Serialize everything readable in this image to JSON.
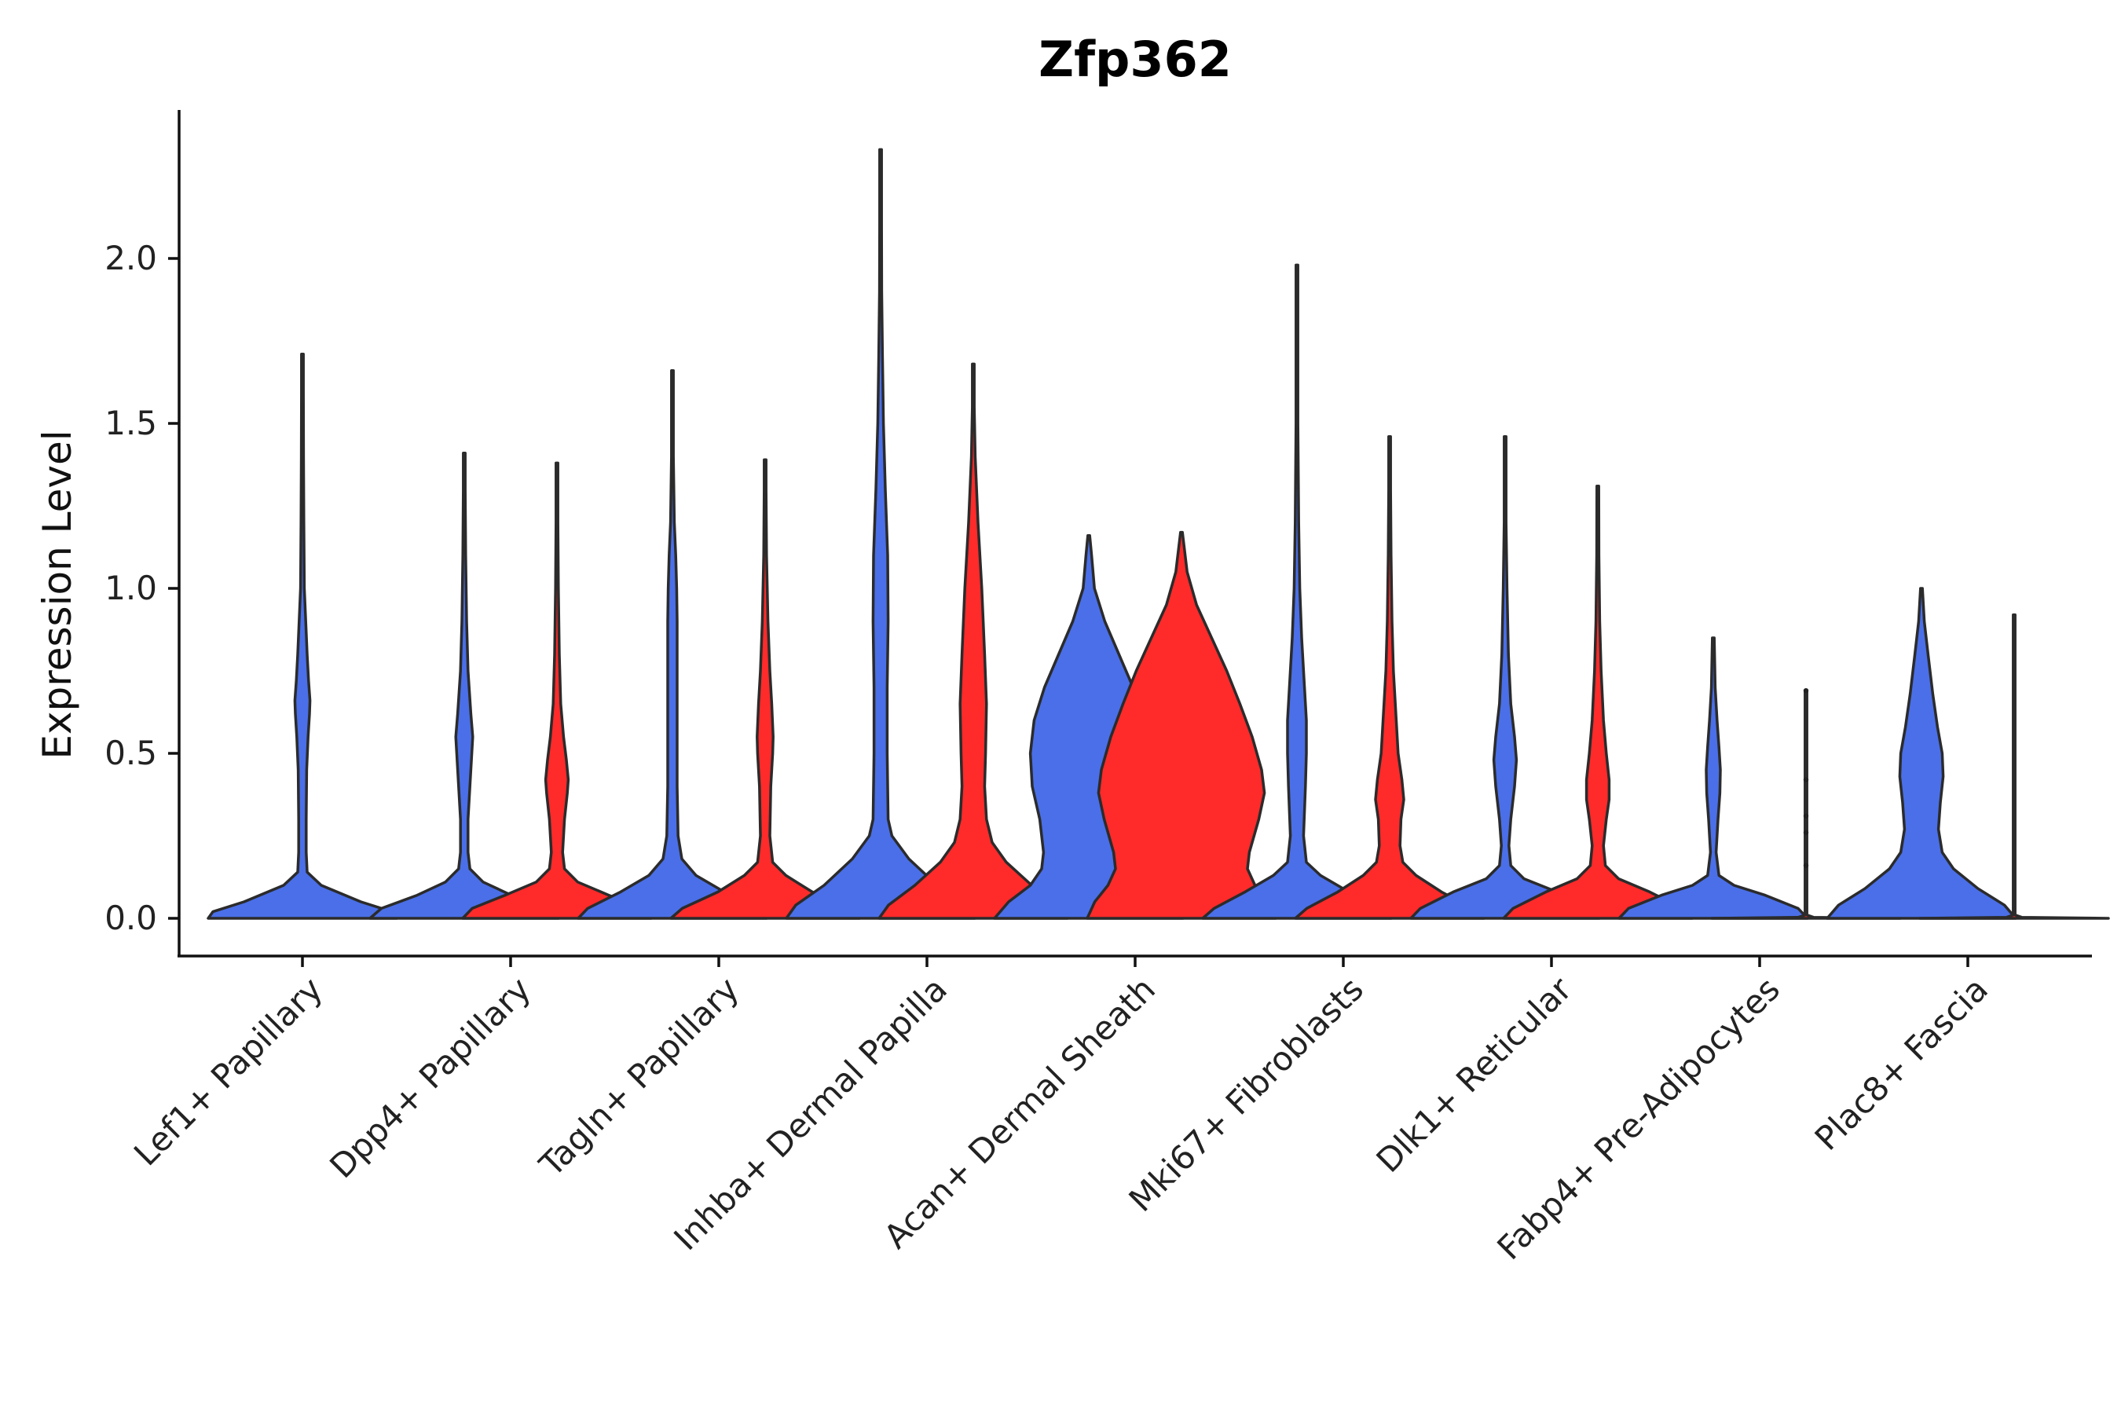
{
  "chart_data": {
    "type": "violin",
    "title": "Zfp362",
    "xlabel": "",
    "ylabel": "Expression Level",
    "ylim": [
      -0.12,
      2.45
    ],
    "yticks": [
      0.0,
      0.5,
      1.0,
      1.5,
      2.0
    ],
    "ytick_labels": [
      "0.0",
      "0.5",
      "1.0",
      "1.5",
      "2.0"
    ],
    "series_colors": {
      "blue": "#4A6FE8",
      "red": "#FF2A2A"
    },
    "categories": [
      "Lef1+ Papillary",
      "Dpp4+ Papillary",
      "Tagln+ Papillary",
      "Inhba+ Dermal Papilla",
      "Acan+ Dermal Sheath",
      "Mki67+ Fibroblasts",
      "Dlk1+ Reticular",
      "Fabp4+ Pre-Adipocytes",
      "Plac8+ Fascia"
    ],
    "violins": [
      {
        "category": "Lef1+ Papillary",
        "series": "blue",
        "max": 1.71,
        "profile": [
          [
            0,
            1.0
          ],
          [
            0.02,
            0.95
          ],
          [
            0.05,
            0.62
          ],
          [
            0.1,
            0.2
          ],
          [
            0.14,
            0.05
          ],
          [
            0.2,
            0.04
          ],
          [
            0.3,
            0.04
          ],
          [
            0.45,
            0.045
          ],
          [
            0.55,
            0.06
          ],
          [
            0.62,
            0.075
          ],
          [
            0.66,
            0.08
          ],
          [
            0.72,
            0.065
          ],
          [
            0.8,
            0.05
          ],
          [
            0.9,
            0.035
          ],
          [
            1.0,
            0.02
          ],
          [
            1.2,
            0.015
          ],
          [
            1.4,
            0.012
          ],
          [
            1.6,
            0.008
          ],
          [
            1.71,
            0
          ]
        ]
      },
      {
        "category": "Dpp4+ Papillary",
        "series": "blue",
        "max": 1.41,
        "profile": [
          [
            0,
            1.0
          ],
          [
            0.03,
            0.88
          ],
          [
            0.07,
            0.5
          ],
          [
            0.11,
            0.2
          ],
          [
            0.15,
            0.06
          ],
          [
            0.2,
            0.04
          ],
          [
            0.3,
            0.04
          ],
          [
            0.4,
            0.06
          ],
          [
            0.5,
            0.08
          ],
          [
            0.55,
            0.09
          ],
          [
            0.62,
            0.07
          ],
          [
            0.75,
            0.04
          ],
          [
            0.9,
            0.025
          ],
          [
            1.1,
            0.015
          ],
          [
            1.3,
            0.01
          ],
          [
            1.41,
            0
          ]
        ]
      },
      {
        "category": "Dpp4+ Papillary",
        "series": "red",
        "max": 1.38,
        "profile": [
          [
            0,
            1.0
          ],
          [
            0.03,
            0.9
          ],
          [
            0.07,
            0.55
          ],
          [
            0.11,
            0.22
          ],
          [
            0.15,
            0.08
          ],
          [
            0.2,
            0.06
          ],
          [
            0.3,
            0.08
          ],
          [
            0.38,
            0.11
          ],
          [
            0.42,
            0.12
          ],
          [
            0.48,
            0.1
          ],
          [
            0.55,
            0.07
          ],
          [
            0.65,
            0.04
          ],
          [
            0.8,
            0.025
          ],
          [
            1.0,
            0.015
          ],
          [
            1.2,
            0.01
          ],
          [
            1.38,
            0
          ]
        ]
      },
      {
        "category": "Tagln+ Papillary",
        "series": "blue",
        "max": 1.66,
        "profile": [
          [
            0,
            1.0
          ],
          [
            0.03,
            0.9
          ],
          [
            0.08,
            0.55
          ],
          [
            0.13,
            0.25
          ],
          [
            0.18,
            0.1
          ],
          [
            0.25,
            0.06
          ],
          [
            0.4,
            0.05
          ],
          [
            0.55,
            0.05
          ],
          [
            0.7,
            0.05
          ],
          [
            0.9,
            0.05
          ],
          [
            1.0,
            0.045
          ],
          [
            1.1,
            0.035
          ],
          [
            1.2,
            0.02
          ],
          [
            1.4,
            0.01
          ],
          [
            1.66,
            0
          ]
        ]
      },
      {
        "category": "Tagln+ Papillary",
        "series": "red",
        "max": 1.39,
        "profile": [
          [
            0,
            1.0
          ],
          [
            0.03,
            0.88
          ],
          [
            0.08,
            0.5
          ],
          [
            0.13,
            0.22
          ],
          [
            0.17,
            0.08
          ],
          [
            0.25,
            0.05
          ],
          [
            0.4,
            0.06
          ],
          [
            0.5,
            0.08
          ],
          [
            0.55,
            0.085
          ],
          [
            0.65,
            0.07
          ],
          [
            0.75,
            0.05
          ],
          [
            0.9,
            0.03
          ],
          [
            1.1,
            0.015
          ],
          [
            1.3,
            0.008
          ],
          [
            1.39,
            0
          ]
        ]
      },
      {
        "category": "Inhba+ Dermal Papilla",
        "series": "blue",
        "max": 2.33,
        "profile": [
          [
            0,
            1.0
          ],
          [
            0.04,
            0.9
          ],
          [
            0.1,
            0.6
          ],
          [
            0.18,
            0.3
          ],
          [
            0.25,
            0.12
          ],
          [
            0.3,
            0.08
          ],
          [
            0.5,
            0.07
          ],
          [
            0.7,
            0.07
          ],
          [
            0.9,
            0.08
          ],
          [
            1.1,
            0.075
          ],
          [
            1.3,
            0.05
          ],
          [
            1.5,
            0.03
          ],
          [
            1.7,
            0.02
          ],
          [
            1.9,
            0.012
          ],
          [
            2.1,
            0.008
          ],
          [
            2.33,
            0
          ]
        ]
      },
      {
        "category": "Inhba+ Dermal Papilla",
        "series": "red",
        "max": 1.68,
        "profile": [
          [
            0,
            1.0
          ],
          [
            0.04,
            0.9
          ],
          [
            0.1,
            0.62
          ],
          [
            0.17,
            0.35
          ],
          [
            0.23,
            0.2
          ],
          [
            0.3,
            0.14
          ],
          [
            0.4,
            0.12
          ],
          [
            0.5,
            0.13
          ],
          [
            0.65,
            0.14
          ],
          [
            0.8,
            0.12
          ],
          [
            1.0,
            0.09
          ],
          [
            1.2,
            0.05
          ],
          [
            1.4,
            0.02
          ],
          [
            1.55,
            0.01
          ],
          [
            1.68,
            0
          ]
        ]
      },
      {
        "category": "Acan+ Dermal Sheath",
        "series": "blue",
        "max": 1.16,
        "profile": [
          [
            0,
            1.0
          ],
          [
            0.05,
            0.85
          ],
          [
            0.1,
            0.62
          ],
          [
            0.15,
            0.5
          ],
          [
            0.2,
            0.48
          ],
          [
            0.3,
            0.52
          ],
          [
            0.4,
            0.6
          ],
          [
            0.5,
            0.62
          ],
          [
            0.6,
            0.58
          ],
          [
            0.7,
            0.47
          ],
          [
            0.8,
            0.32
          ],
          [
            0.9,
            0.17
          ],
          [
            1.0,
            0.06
          ],
          [
            1.1,
            0.03
          ],
          [
            1.16,
            0
          ]
        ]
      },
      {
        "category": "Acan+ Dermal Sheath",
        "series": "red",
        "max": 1.17,
        "profile": [
          [
            0,
            1.0
          ],
          [
            0.05,
            0.92
          ],
          [
            0.1,
            0.78
          ],
          [
            0.15,
            0.7
          ],
          [
            0.2,
            0.72
          ],
          [
            0.3,
            0.82
          ],
          [
            0.38,
            0.88
          ],
          [
            0.45,
            0.85
          ],
          [
            0.55,
            0.75
          ],
          [
            0.65,
            0.62
          ],
          [
            0.75,
            0.48
          ],
          [
            0.85,
            0.32
          ],
          [
            0.95,
            0.16
          ],
          [
            1.05,
            0.06
          ],
          [
            1.17,
            0
          ]
        ]
      },
      {
        "category": "Mki67+ Fibroblasts",
        "series": "blue",
        "max": 1.98,
        "profile": [
          [
            0,
            1.0
          ],
          [
            0.03,
            0.88
          ],
          [
            0.08,
            0.55
          ],
          [
            0.13,
            0.25
          ],
          [
            0.17,
            0.1
          ],
          [
            0.25,
            0.07
          ],
          [
            0.4,
            0.09
          ],
          [
            0.5,
            0.1
          ],
          [
            0.6,
            0.1
          ],
          [
            0.7,
            0.08
          ],
          [
            0.85,
            0.05
          ],
          [
            1.0,
            0.03
          ],
          [
            1.2,
            0.018
          ],
          [
            1.5,
            0.01
          ],
          [
            1.98,
            0
          ]
        ]
      },
      {
        "category": "Mki67+ Fibroblasts",
        "series": "red",
        "max": 1.46,
        "profile": [
          [
            0,
            1.0
          ],
          [
            0.03,
            0.88
          ],
          [
            0.08,
            0.55
          ],
          [
            0.13,
            0.28
          ],
          [
            0.17,
            0.14
          ],
          [
            0.22,
            0.11
          ],
          [
            0.3,
            0.12
          ],
          [
            0.36,
            0.15
          ],
          [
            0.42,
            0.13
          ],
          [
            0.5,
            0.09
          ],
          [
            0.6,
            0.07
          ],
          [
            0.75,
            0.04
          ],
          [
            0.9,
            0.025
          ],
          [
            1.1,
            0.015
          ],
          [
            1.3,
            0.008
          ],
          [
            1.46,
            0
          ]
        ]
      },
      {
        "category": "Dlk1+ Reticular",
        "series": "blue",
        "max": 1.46,
        "profile": [
          [
            0,
            1.0
          ],
          [
            0.03,
            0.9
          ],
          [
            0.08,
            0.55
          ],
          [
            0.12,
            0.2
          ],
          [
            0.16,
            0.06
          ],
          [
            0.22,
            0.04
          ],
          [
            0.3,
            0.06
          ],
          [
            0.4,
            0.1
          ],
          [
            0.48,
            0.12
          ],
          [
            0.55,
            0.1
          ],
          [
            0.65,
            0.06
          ],
          [
            0.8,
            0.035
          ],
          [
            1.0,
            0.02
          ],
          [
            1.2,
            0.01
          ],
          [
            1.46,
            0
          ]
        ]
      },
      {
        "category": "Dlk1+ Reticular",
        "series": "red",
        "max": 1.31,
        "profile": [
          [
            0,
            1.0
          ],
          [
            0.03,
            0.9
          ],
          [
            0.08,
            0.55
          ],
          [
            0.12,
            0.22
          ],
          [
            0.16,
            0.08
          ],
          [
            0.22,
            0.06
          ],
          [
            0.3,
            0.09
          ],
          [
            0.36,
            0.12
          ],
          [
            0.42,
            0.12
          ],
          [
            0.5,
            0.09
          ],
          [
            0.6,
            0.06
          ],
          [
            0.75,
            0.035
          ],
          [
            0.9,
            0.02
          ],
          [
            1.1,
            0.012
          ],
          [
            1.31,
            0
          ]
        ]
      },
      {
        "category": "Fabp4+ Pre-Adipocytes",
        "series": "blue",
        "max": 0.85,
        "profile": [
          [
            0,
            1.0
          ],
          [
            0.03,
            0.9
          ],
          [
            0.07,
            0.55
          ],
          [
            0.1,
            0.22
          ],
          [
            0.13,
            0.06
          ],
          [
            0.2,
            0.03
          ],
          [
            0.3,
            0.05
          ],
          [
            0.38,
            0.07
          ],
          [
            0.45,
            0.075
          ],
          [
            0.52,
            0.06
          ],
          [
            0.6,
            0.04
          ],
          [
            0.7,
            0.02
          ],
          [
            0.85,
            0
          ]
        ]
      },
      {
        "category": "Fabp4+ Pre-Adipocytes",
        "series": "red",
        "max": 0.69,
        "profile": [
          [
            0,
            1.0
          ],
          [
            0.003,
            0.08
          ],
          [
            0.01,
            0.005
          ],
          [
            0.69,
            0
          ]
        ]
      },
      {
        "category": "Plac8+ Fascia",
        "series": "blue",
        "max": 1.0,
        "profile": [
          [
            0,
            1.0
          ],
          [
            0.04,
            0.88
          ],
          [
            0.09,
            0.6
          ],
          [
            0.15,
            0.34
          ],
          [
            0.2,
            0.22
          ],
          [
            0.27,
            0.18
          ],
          [
            0.35,
            0.2
          ],
          [
            0.43,
            0.23
          ],
          [
            0.5,
            0.22
          ],
          [
            0.58,
            0.17
          ],
          [
            0.68,
            0.12
          ],
          [
            0.8,
            0.07
          ],
          [
            0.9,
            0.03
          ],
          [
            1.0,
            0
          ]
        ]
      },
      {
        "category": "Plac8+ Fascia",
        "series": "red",
        "max": 0.92,
        "profile": [
          [
            0,
            1.0
          ],
          [
            0.003,
            0.08
          ],
          [
            0.01,
            0.005
          ],
          [
            0.92,
            0
          ]
        ]
      }
    ],
    "jitter_points": [
      {
        "category": "Fabp4+ Pre-Adipocytes",
        "series": "red",
        "values": [
          0.16,
          0.26,
          0.31,
          0.42,
          0.69
        ]
      }
    ]
  }
}
